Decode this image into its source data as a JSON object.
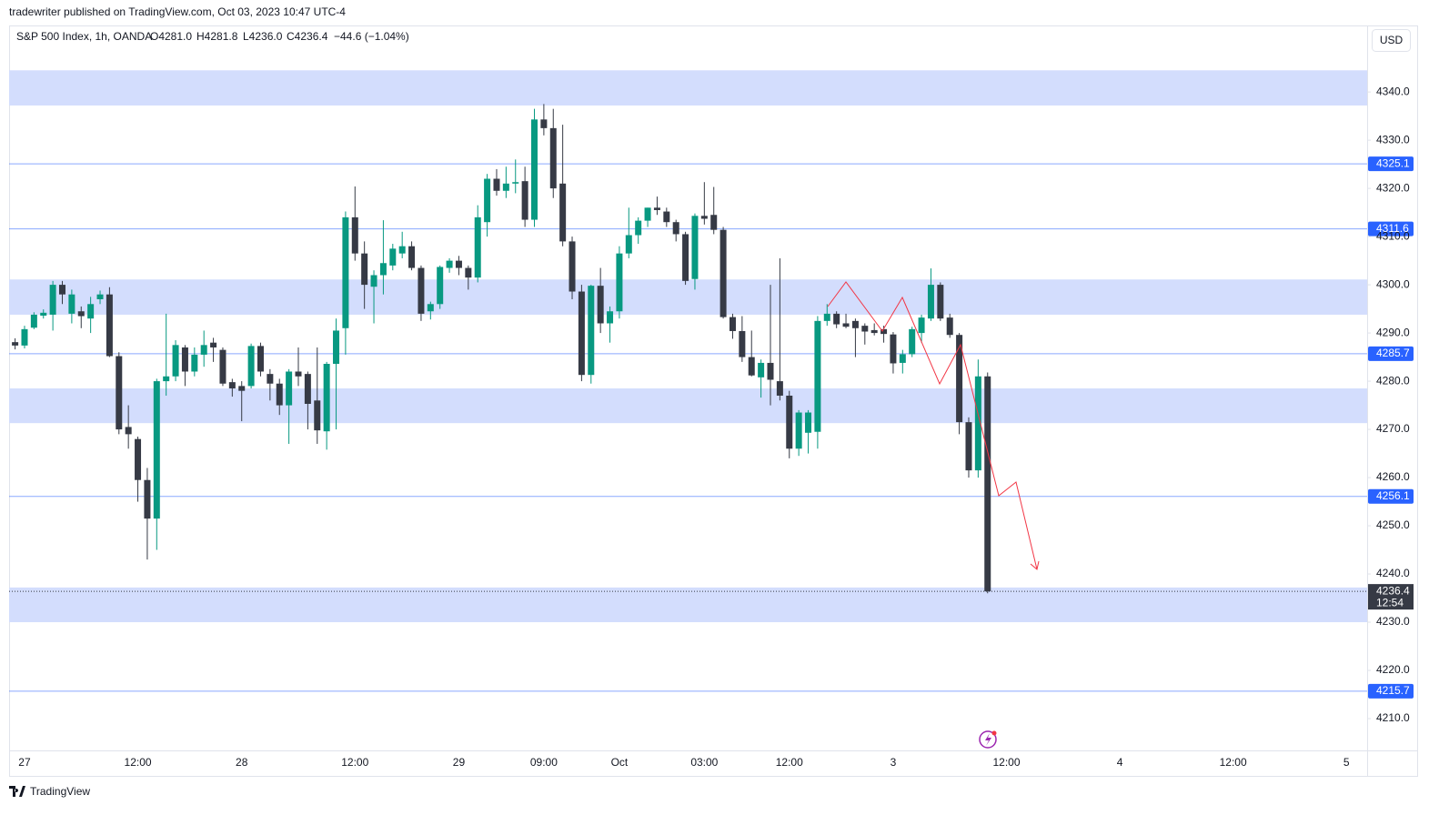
{
  "page": {
    "published": "tradewriter published on TradingView.com, Oct 03, 2023 10:47 UTC-4",
    "currency": "USD",
    "footer": "TradingView"
  },
  "chart_data": {
    "type": "candlestick",
    "legend": {
      "symbol": "S&P 500 Index, 1h, OANDA",
      "open": "O4281.0",
      "high": "H4281.8",
      "low": "L4236.0",
      "close": "C4236.4",
      "change": "−44.6 (−1.04%)"
    },
    "countdown": "12:54",
    "up_color": "#089981",
    "down_color": "#363a45",
    "categories": [
      null,
      "27",
      null,
      null,
      null,
      null,
      null,
      null,
      null,
      null,
      null,
      null,
      null,
      "12:00",
      null,
      null,
      null,
      null,
      null,
      null,
      null,
      null,
      null,
      null,
      "28",
      null,
      null,
      null,
      null,
      null,
      null,
      null,
      null,
      null,
      null,
      null,
      "12:00",
      null,
      null,
      null,
      null,
      null,
      null,
      null,
      null,
      null,
      null,
      "29",
      null,
      null,
      null,
      null,
      null,
      null,
      null,
      null,
      "09:00",
      null,
      null,
      null,
      null,
      null,
      null,
      null,
      "Oct",
      null,
      null,
      null,
      null,
      null,
      null,
      null,
      null,
      "03:00",
      null,
      null,
      null,
      null,
      null,
      null,
      null,
      null,
      "12:00",
      null,
      null,
      null,
      null,
      null,
      null,
      null,
      null,
      null,
      null,
      "3",
      null,
      null,
      null,
      null,
      null,
      null,
      null,
      null,
      null,
      null,
      null,
      "12:00",
      null,
      null,
      null,
      null,
      null,
      null,
      null,
      null,
      null,
      null,
      null,
      "4",
      null,
      null,
      null,
      null,
      null,
      null,
      null,
      null,
      null,
      null,
      null,
      "12:00",
      null,
      null,
      null,
      null,
      null,
      null,
      null,
      null,
      null,
      null,
      null,
      "5",
      null
    ],
    "open": [
      4288.1,
      4287.4,
      4291.1,
      4293.6,
      4293.8,
      4300.0,
      4294.0,
      4294.5,
      4293.0,
      4297.0,
      4298.0,
      4285.2,
      4270.5,
      4268.0,
      4259.5,
      4251.5,
      4280.0,
      4281.0,
      4287.0,
      4282.0,
      4285.5,
      4288.0,
      4286.5,
      4279.8,
      4279.0,
      4279.0,
      4287.3,
      4281.5,
      4279.5,
      4275.0,
      4282.0,
      4281.5,
      4276.0,
      4269.6,
      4283.6,
      4291.0,
      4314.0,
      4306.5,
      4299.6,
      4302.0,
      4304.0,
      4306.5,
      4308.0,
      4303.5,
      4294.5,
      4296.0,
      4303.5,
      4305.0,
      4303.5,
      4301.5,
      4313.0,
      4322.0,
      4319.5,
      4321.0,
      4321.5,
      4313.5,
      4334.3,
      4332.5,
      4321.0,
      4309.0,
      4298.6,
      4281.3,
      4299.8,
      4292.0,
      4294.5,
      4306.5,
      4310.3,
      4313.3,
      4316.0,
      4315.2,
      4313.0,
      4310.5,
      4301.2,
      4314.3,
      4314.5,
      4311.4,
      4293.3,
      4290.4,
      4285.0,
      4280.8,
      4283.8,
      4280.0,
      4277.0,
      4266.0,
      4269.3,
      4269.5,
      4292.5,
      4294.0,
      4292.0,
      4292.5,
      4291.5,
      4290.6,
      4290.8,
      4289.7,
      4283.8,
      4285.6,
      4290.0,
      4293.0,
      4300.0,
      4293.2,
      4289.6,
      4271.5,
      4261.5,
      4281.0,
      null,
      null,
      null,
      null,
      null,
      null,
      null,
      null,
      null,
      null,
      null,
      null,
      null,
      null,
      null,
      null,
      null,
      null,
      null,
      null,
      null,
      null,
      null,
      null,
      null,
      null,
      null,
      null,
      null,
      null,
      null,
      null,
      null,
      null,
      null,
      null,
      null,
      null,
      null
    ],
    "high": [
      4288.9,
      4291.5,
      4294.3,
      4294.9,
      4300.8,
      4300.8,
      4299.0,
      4295.5,
      4297.5,
      4298.8,
      4299.5,
      4286.0,
      4275.0,
      4268.5,
      4262.0,
      4280.5,
      4294.0,
      4288.5,
      4287.5,
      4287.0,
      4290.5,
      4289.0,
      4287.0,
      4280.5,
      4280.0,
      4287.8,
      4288.0,
      4282.5,
      4280.5,
      4282.5,
      4287.0,
      4282.0,
      4287.0,
      4284.0,
      4293.0,
      4315.2,
      4320.4,
      4309.0,
      4303.0,
      4313.4,
      4308.5,
      4311.0,
      4309.0,
      4304.0,
      4296.5,
      4304.0,
      4305.5,
      4306.0,
      4304.0,
      4316.5,
      4323.0,
      4324.0,
      4324.5,
      4326.0,
      4324.5,
      4336.5,
      4337.5,
      4336.5,
      4333.2,
      4310.0,
      4300.0,
      4300.0,
      4303.5,
      4295.5,
      4308.0,
      4316.0,
      4314.0,
      4316.0,
      4318.3,
      4316.0,
      4313.5,
      4311.0,
      4314.8,
      4321.3,
      4320.3,
      4312.0,
      4294.0,
      4293.5,
      4290.5,
      4284.5,
      4300.0,
      4305.5,
      4278.0,
      4274.0,
      4274.0,
      4293.5,
      4296.0,
      4294.5,
      4294.0,
      4293.0,
      4292.0,
      4292.0,
      4291.5,
      4290.2,
      4286.5,
      4291.3,
      4293.8,
      4303.4,
      4300.5,
      4294.0,
      4290.0,
      4272.5,
      4284.5,
      4281.8,
      null,
      null,
      null,
      null,
      null,
      null,
      null,
      null,
      null,
      null,
      null,
      null,
      null,
      null,
      null,
      null,
      null,
      null,
      null,
      null,
      null,
      null,
      null,
      null,
      null,
      null,
      null,
      null,
      null,
      null,
      null,
      null,
      null,
      null,
      null,
      null,
      null,
      null,
      null
    ],
    "low": [
      4286.6,
      4286.8,
      4290.8,
      4293.0,
      4290.5,
      4296.0,
      4292.0,
      4291.0,
      4290.0,
      4296.0,
      4285.0,
      4269.0,
      4266.0,
      4255.0,
      4243.0,
      4245.0,
      4277.0,
      4280.0,
      4279.0,
      4281.0,
      4283.0,
      4284.0,
      4279.0,
      4276.8,
      4271.7,
      4278.5,
      4281.0,
      4276.0,
      4273.0,
      4267.0,
      4279.0,
      4270.0,
      4267.0,
      4265.8,
      4270.0,
      4285.5,
      4305.0,
      4295.0,
      4292.0,
      4298.0,
      4303.0,
      4305.5,
      4303.0,
      4292.5,
      4292.8,
      4295.0,
      4302.5,
      4302.0,
      4299.0,
      4300.5,
      4310.0,
      4318.5,
      4318.0,
      4319.0,
      4312.0,
      4312.0,
      4331.0,
      4318.0,
      4308.0,
      4297.0,
      4280.0,
      4279.5,
      4290.0,
      4288.0,
      4293.0,
      4305.5,
      4308.5,
      4312.0,
      4314.5,
      4312.0,
      4309.0,
      4300.0,
      4299.0,
      4312.5,
      4310.5,
      4293.0,
      4288.8,
      4284.0,
      4281.0,
      4276.6,
      4275.0,
      4276.0,
      4264.0,
      4264.5,
      4265.0,
      4266.0,
      4291.5,
      4291.0,
      4291.0,
      4285.0,
      4287.6,
      4289.5,
      4288.0,
      4281.6,
      4281.6,
      4285.0,
      4288.0,
      4292.5,
      4292.5,
      4289.0,
      4269.0,
      4260.0,
      4260.0,
      4236.0,
      null,
      null,
      null,
      null,
      null,
      null,
      null,
      null,
      null,
      null,
      null,
      null,
      null,
      null,
      null,
      null,
      null,
      null,
      null,
      null,
      null,
      null,
      null,
      null,
      null,
      null,
      null,
      null,
      null,
      null,
      null,
      null,
      null,
      null,
      null,
      null,
      null,
      null,
      null
    ],
    "close": [
      4287.4,
      4290.8,
      4293.8,
      4294.2,
      4300.0,
      4298.0,
      4298.0,
      4293.5,
      4296.0,
      4298.0,
      4285.2,
      4270.0,
      4269.0,
      4259.5,
      4251.5,
      4280.0,
      4281.0,
      4287.5,
      4282.0,
      4285.5,
      4287.5,
      4287.0,
      4279.5,
      4278.5,
      4278.0,
      4287.3,
      4282.0,
      4279.5,
      4275.0,
      4282.0,
      4281.0,
      4275.3,
      4269.8,
      4283.6,
      4290.5,
      4314.0,
      4306.5,
      4300.0,
      4302.0,
      4304.5,
      4307.5,
      4308.0,
      4303.5,
      4294.0,
      4296.0,
      4303.7,
      4305.0,
      4303.5,
      4301.5,
      4314.0,
      4322.0,
      4319.5,
      4321.0,
      4321.3,
      4313.5,
      4334.3,
      4332.5,
      4320.0,
      4309.0,
      4298.6,
      4281.3,
      4299.8,
      4292.0,
      4294.5,
      4306.5,
      4310.3,
      4313.3,
      4316.0,
      4315.5,
      4313.0,
      4310.5,
      4300.8,
      4314.3,
      4313.7,
      4311.4,
      4293.3,
      4290.4,
      4285.0,
      4281.2,
      4283.8,
      4280.3,
      4277.0,
      4266.0,
      4273.5,
      4273.5,
      4292.5,
      4294.0,
      4291.8,
      4291.3,
      4291.0,
      4290.3,
      4290.0,
      4289.8,
      4283.7,
      4285.6,
      4290.8,
      4293.2,
      4300.0,
      4293.0,
      4289.6,
      4271.5,
      4261.5,
      4281.0,
      4236.4,
      null,
      null,
      null,
      null,
      null,
      null,
      null,
      null,
      null,
      null,
      null,
      null,
      null,
      null,
      null,
      null,
      null,
      null,
      null,
      null,
      null,
      null,
      null,
      null,
      null,
      null,
      null,
      null,
      null,
      null,
      null,
      null,
      null,
      null,
      null,
      null,
      null,
      null,
      null
    ],
    "ylim": [
      4203.4,
      4353.8
    ],
    "yticks": [
      {
        "value": 4210,
        "label": "4210.0"
      },
      {
        "value": 4220,
        "label": "4220.0"
      },
      {
        "value": 4230,
        "label": "4230.0"
      },
      {
        "value": 4240,
        "label": "4240.0"
      },
      {
        "value": 4250,
        "label": "4250.0"
      },
      {
        "value": 4260,
        "label": "4260.0"
      },
      {
        "value": 4270,
        "label": "4270.0"
      },
      {
        "value": 4280,
        "label": "4280.0"
      },
      {
        "value": 4290,
        "label": "4290.0"
      },
      {
        "value": 4300,
        "label": "4300.0"
      },
      {
        "value": 4310,
        "label": "4310.0"
      },
      {
        "value": 4320,
        "label": "4320.0"
      },
      {
        "value": 4330,
        "label": "4330.0"
      },
      {
        "value": 4340,
        "label": "4340.0"
      }
    ],
    "grid": false,
    "hlines": [
      4325.1,
      4311.6,
      4285.7,
      4256.1,
      4215.7
    ],
    "hline_color": "#2962ff",
    "zones": [
      [
        4344.5,
        4337.2
      ],
      [
        4301.1,
        4293.8
      ],
      [
        4278.5,
        4271.3
      ],
      [
        4237.2,
        4230.0
      ]
    ],
    "zone_color": "#d3ddfd"
  }
}
